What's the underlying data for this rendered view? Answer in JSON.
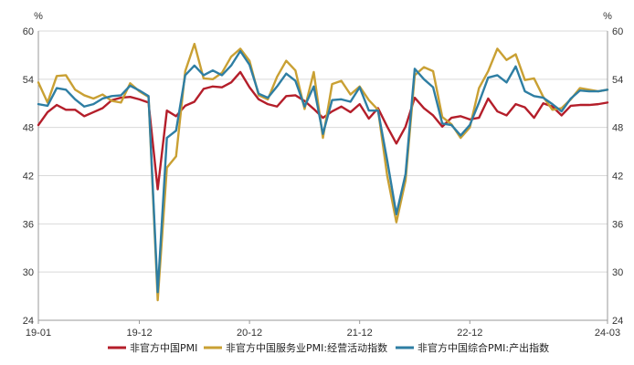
{
  "chart_data": {
    "type": "line",
    "title": "",
    "xlabel": "",
    "ylabel": "%",
    "ylabel_right": "%",
    "ylim": [
      24,
      60
    ],
    "yticks": [
      24,
      30,
      36,
      42,
      48,
      54,
      60
    ],
    "grid": "horizontal",
    "legend_position": "bottom",
    "x": [
      "19-01",
      "19-02",
      "19-03",
      "19-04",
      "19-05",
      "19-06",
      "19-07",
      "19-08",
      "19-09",
      "19-10",
      "19-11",
      "19-12",
      "20-01",
      "20-02",
      "20-03",
      "20-04",
      "20-05",
      "20-06",
      "20-07",
      "20-08",
      "20-09",
      "20-10",
      "20-11",
      "20-12",
      "21-01",
      "21-02",
      "21-03",
      "21-04",
      "21-05",
      "21-06",
      "21-07",
      "21-08",
      "21-09",
      "21-10",
      "21-11",
      "21-12",
      "22-01",
      "22-02",
      "22-03",
      "22-04",
      "22-05",
      "22-06",
      "22-07",
      "22-08",
      "22-09",
      "22-10",
      "22-11",
      "22-12",
      "23-01",
      "23-02",
      "23-03",
      "23-04",
      "23-05",
      "23-06",
      "23-07",
      "23-08",
      "23-09",
      "23-10",
      "23-11",
      "23-12",
      "24-01",
      "24-02",
      "24-03"
    ],
    "xtick_labels": [
      "19-01",
      "19-12",
      "20-12",
      "21-12",
      "22-12",
      "24-03"
    ],
    "series": [
      {
        "name": "非官方中国PMI",
        "color": "#B41E2A",
        "values": [
          48.3,
          49.9,
          50.8,
          50.2,
          50.2,
          49.4,
          49.9,
          50.4,
          51.4,
          51.7,
          51.8,
          51.5,
          51.1,
          40.3,
          50.1,
          49.4,
          50.7,
          51.2,
          52.8,
          53.1,
          53.0,
          53.6,
          54.9,
          53.0,
          51.5,
          50.9,
          50.6,
          51.9,
          52.0,
          51.3,
          50.3,
          49.2,
          50.0,
          50.6,
          49.9,
          50.9,
          49.1,
          50.4,
          48.1,
          46.0,
          48.1,
          51.7,
          50.4,
          49.5,
          48.1,
          49.2,
          49.4,
          49.0,
          49.2,
          51.6,
          50.0,
          49.5,
          50.9,
          50.5,
          49.2,
          51.0,
          50.6,
          49.5,
          50.7,
          50.8,
          50.8,
          50.9,
          51.1
        ]
      },
      {
        "name": "非官方中国服务业PMI:经营活动指数",
        "color": "#C9A033",
        "values": [
          53.6,
          51.1,
          54.4,
          54.5,
          52.7,
          52.0,
          51.6,
          52.1,
          51.3,
          51.1,
          53.5,
          52.5,
          51.8,
          26.5,
          43.0,
          44.4,
          55.0,
          58.4,
          54.1,
          54.0,
          54.8,
          56.8,
          57.8,
          56.3,
          52.0,
          51.5,
          54.3,
          56.3,
          55.1,
          50.3,
          54.9,
          46.7,
          53.4,
          53.8,
          52.1,
          53.1,
          51.4,
          50.2,
          42.0,
          36.2,
          41.4,
          54.5,
          55.5,
          55.0,
          49.3,
          48.4,
          46.7,
          48.0,
          52.9,
          55.0,
          57.8,
          56.4,
          57.1,
          53.9,
          54.1,
          51.8,
          50.2,
          50.4,
          51.5,
          52.9,
          52.7,
          52.5,
          52.7
        ]
      },
      {
        "name": "非官方中国综合PMI:产出指数",
        "color": "#2E7EA3",
        "values": [
          50.9,
          50.7,
          52.9,
          52.7,
          51.5,
          50.6,
          50.9,
          51.6,
          51.9,
          52.0,
          53.2,
          52.6,
          51.9,
          27.5,
          46.7,
          47.6,
          54.5,
          55.7,
          54.5,
          55.1,
          54.5,
          55.7,
          57.5,
          55.8,
          52.2,
          51.7,
          53.1,
          54.7,
          53.8,
          50.6,
          53.1,
          47.2,
          51.4,
          51.5,
          51.2,
          53.0,
          50.1,
          50.1,
          43.9,
          37.2,
          42.2,
          55.3,
          54.0,
          53.0,
          48.5,
          48.3,
          47.0,
          48.3,
          51.1,
          54.2,
          54.5,
          53.6,
          55.6,
          52.5,
          51.9,
          51.7,
          50.9,
          50.0,
          51.6,
          52.6,
          52.5,
          52.5,
          52.7
        ]
      }
    ]
  }
}
